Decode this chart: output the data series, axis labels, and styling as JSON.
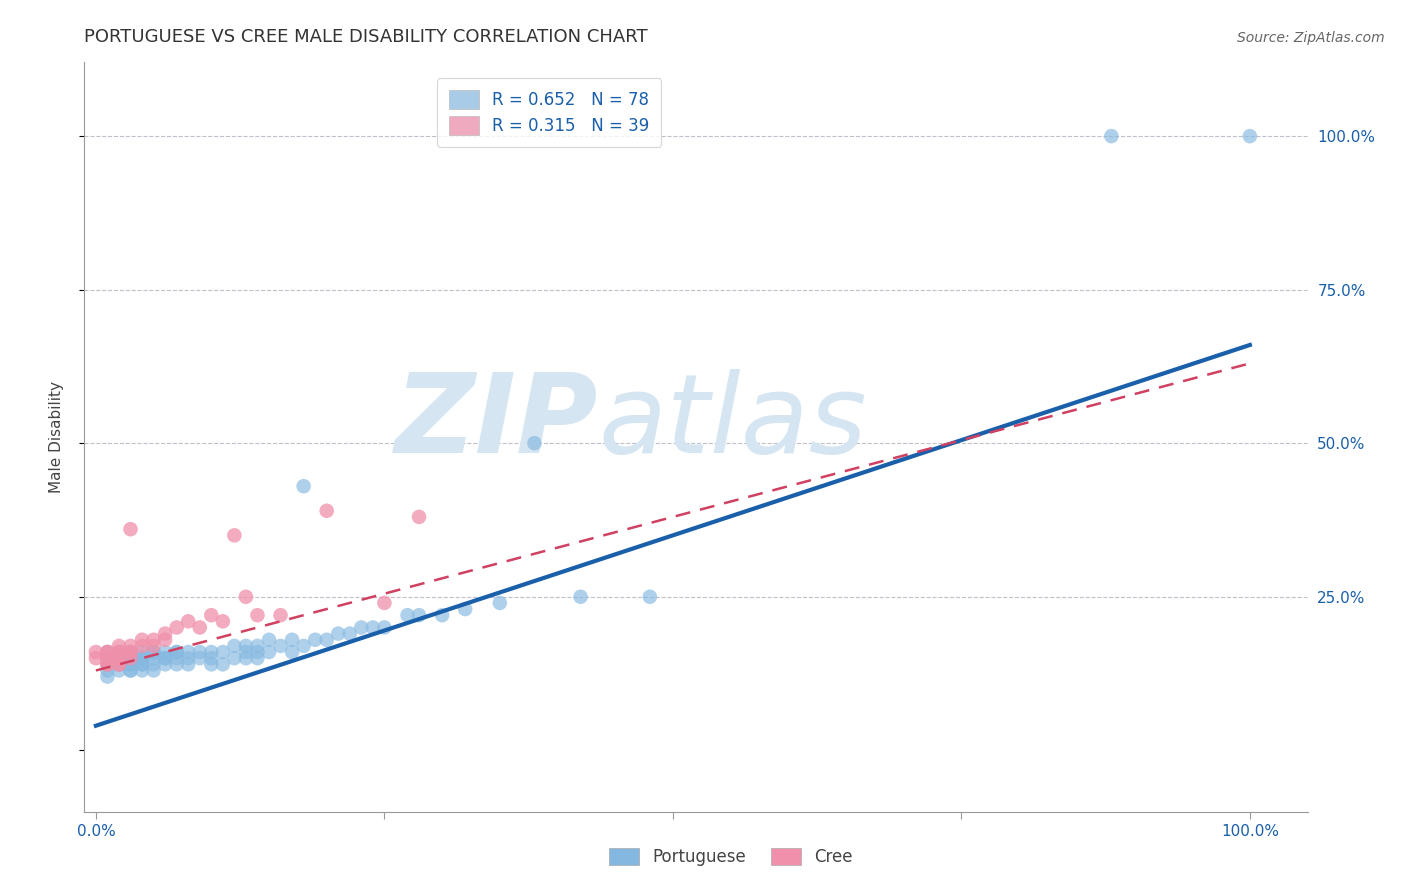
{
  "title": "PORTUGUESE VS CREE MALE DISABILITY CORRELATION CHART",
  "source": "Source: ZipAtlas.com",
  "ylabel": "Male Disability",
  "xlim": [
    -0.01,
    1.05
  ],
  "ylim": [
    -0.1,
    1.12
  ],
  "legend_entries": [
    {
      "label": "R = 0.652   N = 78",
      "color": "#a8cce8"
    },
    {
      "label": "R = 0.315   N = 39",
      "color": "#f0aabf"
    }
  ],
  "portuguese_color": "#85b8e0",
  "cree_color": "#f090aa",
  "blue_line_color": "#1a5faa",
  "pink_line_color": "#d04060",
  "grid_color": "#c0c0cc",
  "watermark_color": "#d5e5f2",
  "blue_line_intercept": 0.04,
  "blue_line_slope": 0.62,
  "pink_line_intercept": 0.13,
  "pink_line_slope": 0.5,
  "pink_line_xmax": 1.0,
  "portuguese_x": [
    0.01,
    0.01,
    0.01,
    0.01,
    0.01,
    0.02,
    0.02,
    0.02,
    0.02,
    0.02,
    0.02,
    0.03,
    0.03,
    0.03,
    0.03,
    0.03,
    0.03,
    0.04,
    0.04,
    0.04,
    0.04,
    0.04,
    0.04,
    0.05,
    0.05,
    0.05,
    0.05,
    0.05,
    0.06,
    0.06,
    0.06,
    0.06,
    0.07,
    0.07,
    0.07,
    0.07,
    0.08,
    0.08,
    0.08,
    0.09,
    0.09,
    0.1,
    0.1,
    0.1,
    0.11,
    0.11,
    0.12,
    0.12,
    0.13,
    0.13,
    0.13,
    0.14,
    0.14,
    0.14,
    0.15,
    0.15,
    0.16,
    0.17,
    0.17,
    0.18,
    0.18,
    0.19,
    0.2,
    0.21,
    0.22,
    0.23,
    0.24,
    0.25,
    0.27,
    0.28,
    0.3,
    0.32,
    0.35,
    0.38,
    0.42,
    0.48,
    0.88,
    1.0
  ],
  "portuguese_y": [
    0.14,
    0.15,
    0.13,
    0.12,
    0.16,
    0.14,
    0.13,
    0.16,
    0.15,
    0.14,
    0.15,
    0.14,
    0.13,
    0.16,
    0.15,
    0.14,
    0.13,
    0.15,
    0.14,
    0.16,
    0.13,
    0.15,
    0.14,
    0.16,
    0.15,
    0.14,
    0.13,
    0.16,
    0.15,
    0.16,
    0.14,
    0.15,
    0.16,
    0.15,
    0.14,
    0.16,
    0.15,
    0.16,
    0.14,
    0.16,
    0.15,
    0.14,
    0.16,
    0.15,
    0.14,
    0.16,
    0.17,
    0.15,
    0.16,
    0.15,
    0.17,
    0.16,
    0.15,
    0.17,
    0.16,
    0.18,
    0.17,
    0.16,
    0.18,
    0.17,
    0.43,
    0.18,
    0.18,
    0.19,
    0.19,
    0.2,
    0.2,
    0.2,
    0.22,
    0.22,
    0.22,
    0.23,
    0.24,
    0.5,
    0.25,
    0.25,
    1.0,
    1.0
  ],
  "cree_x": [
    0.0,
    0.0,
    0.01,
    0.01,
    0.01,
    0.01,
    0.01,
    0.01,
    0.01,
    0.02,
    0.02,
    0.02,
    0.02,
    0.02,
    0.02,
    0.02,
    0.03,
    0.03,
    0.03,
    0.03,
    0.03,
    0.04,
    0.04,
    0.05,
    0.05,
    0.06,
    0.06,
    0.07,
    0.08,
    0.09,
    0.1,
    0.11,
    0.12,
    0.13,
    0.14,
    0.16,
    0.2,
    0.25,
    0.28
  ],
  "cree_y": [
    0.15,
    0.16,
    0.15,
    0.16,
    0.14,
    0.15,
    0.14,
    0.16,
    0.15,
    0.15,
    0.14,
    0.16,
    0.15,
    0.14,
    0.16,
    0.17,
    0.16,
    0.15,
    0.17,
    0.16,
    0.36,
    0.18,
    0.17,
    0.18,
    0.17,
    0.19,
    0.18,
    0.2,
    0.21,
    0.2,
    0.22,
    0.21,
    0.35,
    0.25,
    0.22,
    0.22,
    0.39,
    0.24,
    0.38
  ],
  "title_fontsize": 13,
  "axis_label_fontsize": 11,
  "tick_fontsize": 11,
  "legend_fontsize": 12,
  "source_fontsize": 10
}
